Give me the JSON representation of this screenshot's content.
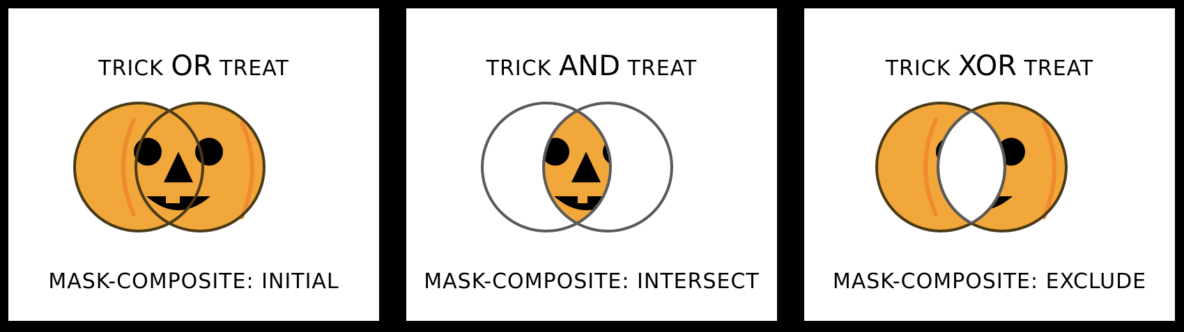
{
  "panels": [
    {
      "title": {
        "pre": "TRICK",
        "op": "OR",
        "post": "TREAT"
      },
      "caption": "MASK-COMPOSITE: INITIAL"
    },
    {
      "title": {
        "pre": "TRICK",
        "op": "AND",
        "post": "TREAT"
      },
      "caption": "MASK-COMPOSITE: INTERSECT"
    },
    {
      "title": {
        "pre": "TRICK",
        "op": "XOR",
        "post": "TREAT"
      },
      "caption": "MASK-COMPOSITE: EXCLUDE"
    }
  ],
  "colors": {
    "pumpkin": "#F2A73B",
    "rib": "#F08A2E",
    "outline_dark": "#4A3A17",
    "outline_gray": "#5A5A5A",
    "face": "#000000",
    "background": "#FFFFFF",
    "frame": "#000000"
  }
}
